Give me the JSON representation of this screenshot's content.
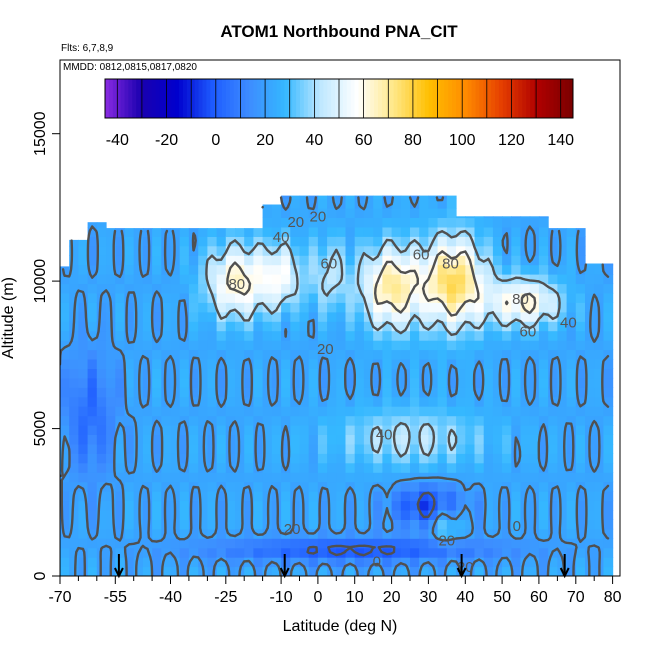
{
  "chart_data": {
    "type": "heatmap",
    "title": "ATOM1 Northbound PNA_CIT",
    "subtitle_flights": "Flts: 6,7,8,9",
    "subtitle_dates": "MMDD: 0812,0815,0817,0820",
    "xlabel": "Latitude (deg N)",
    "ylabel": "Altitude (m)",
    "xlim": [
      -70,
      82
    ],
    "ylim": [
      0,
      17500
    ],
    "x_ticks": [
      -70,
      -55,
      -40,
      -25,
      -10,
      0,
      10,
      20,
      30,
      40,
      50,
      60,
      70,
      80
    ],
    "x_tick_labels": [
      "-70",
      "-55",
      "-40",
      "-25",
      "-10",
      "0",
      "10",
      "20",
      "30",
      "40",
      "50",
      "60",
      "70",
      "80"
    ],
    "y_ticks": [
      0,
      5000,
      10000,
      15000
    ],
    "y_tick_labels": [
      "0",
      "5000",
      "10000",
      "15000"
    ],
    "colorbar": {
      "range": [
        -45,
        145
      ],
      "ticks": [
        -40,
        -20,
        0,
        20,
        40,
        60,
        80,
        100,
        120,
        140
      ],
      "tick_labels": [
        "-40",
        "-20",
        "0",
        "20",
        "40",
        "60",
        "80",
        "100",
        "120",
        "140"
      ],
      "colors": [
        "#8a2be2",
        "#1a00b0",
        "#0000cd",
        "#1e5cff",
        "#3d8cff",
        "#35b8ff",
        "#bfe8ff",
        "#ffffff",
        "#ffe88a",
        "#ffbf00",
        "#ff8c00",
        "#e64000",
        "#b00000",
        "#7a0000"
      ],
      "placement": "top"
    },
    "flight_markers_lat": [
      -54,
      -9,
      39,
      67
    ],
    "contour_labels": [
      {
        "text": "20",
        "lat": -6,
        "alt": 12000
      },
      {
        "text": "20",
        "lat": 0,
        "alt": 12200
      },
      {
        "text": "40",
        "lat": -10,
        "alt": 11500
      },
      {
        "text": "60",
        "lat": 3,
        "alt": 10600
      },
      {
        "text": "60",
        "lat": 28,
        "alt": 10900
      },
      {
        "text": "80",
        "lat": 36,
        "alt": 10600
      },
      {
        "text": "80",
        "lat": -22,
        "alt": 9900
      },
      {
        "text": "80",
        "lat": 55,
        "alt": 9400
      },
      {
        "text": "60",
        "lat": 57,
        "alt": 8300
      },
      {
        "text": "40",
        "lat": 68,
        "alt": 8600
      },
      {
        "text": "20",
        "lat": 2,
        "alt": 7700
      },
      {
        "text": "40",
        "lat": 18,
        "alt": 4800
      },
      {
        "text": "20",
        "lat": -7,
        "alt": 1600
      },
      {
        "text": "20",
        "lat": 35,
        "alt": 1200
      },
      {
        "text": "20",
        "lat": 40,
        "alt": 300
      },
      {
        "text": "0",
        "lat": 16,
        "alt": 500
      },
      {
        "text": "0",
        "lat": 54,
        "alt": 1700
      }
    ]
  }
}
